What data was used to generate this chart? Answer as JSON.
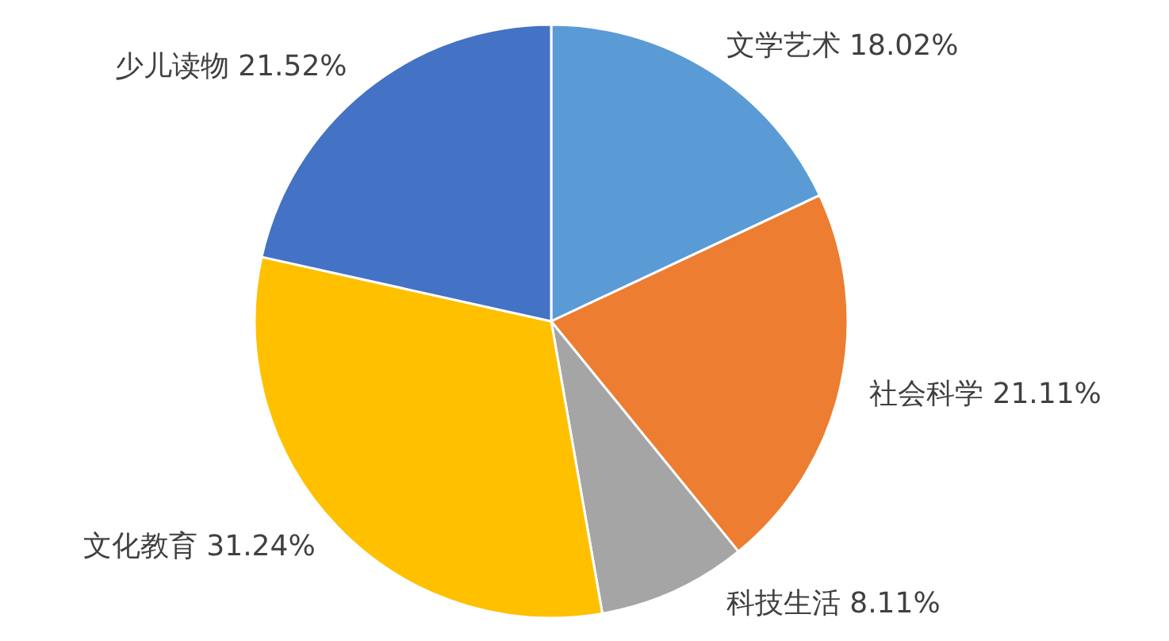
{
  "chart_data": {
    "type": "pie",
    "categories": [
      "文学艺术",
      "社会科学",
      "科技生活",
      "文化教育",
      "少儿读物"
    ],
    "values": [
      18.02,
      21.11,
      8.11,
      31.24,
      21.52
    ],
    "value_labels": [
      "18.02%",
      "21.11%",
      "8.11%",
      "31.24%",
      "21.52%"
    ],
    "colors": [
      "#5b9bd5",
      "#ed7d31",
      "#a5a5a5",
      "#ffc000",
      "#4472c4"
    ]
  }
}
